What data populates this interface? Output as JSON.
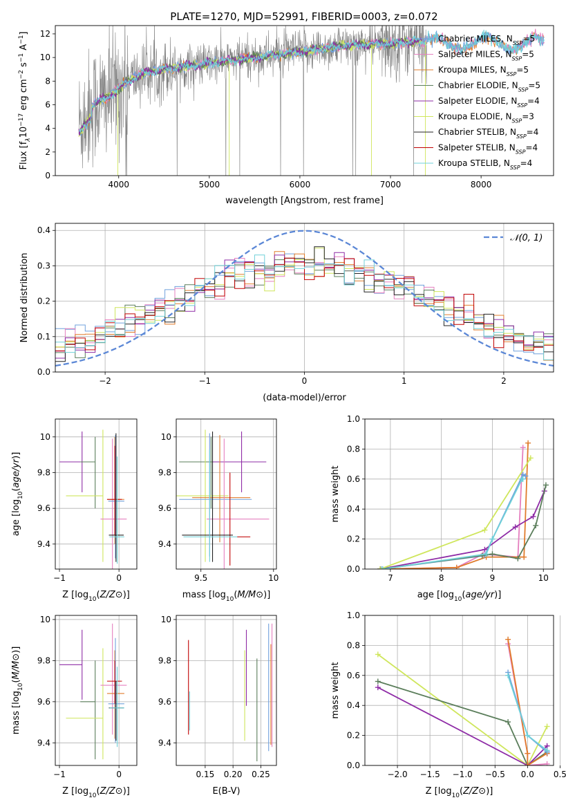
{
  "figure_title": "PLATE=1270, MJD=52991, FIBERID=0003, z=0.072",
  "colors": {
    "Chabrier MILES": "#6fa0dc",
    "Salpeter MILES": "#e57fbf",
    "Kroupa MILES": "#e07b2b",
    "Chabrier ELODIE": "#5a7d5a",
    "Salpeter ELODIE": "#8e2ba6",
    "Kroupa ELODIE": "#cfe65c",
    "Chabrier STELIB": "#222222",
    "Salpeter STELIB": "#c00000",
    "Kroupa STELIB": "#6fd0d8",
    "data": "#808080",
    "normal": "#5b87d6"
  },
  "chart_data": [
    {
      "id": "spectrum",
      "type": "line",
      "title": "PLATE=1270, MJD=52991, FIBERID=0003, z=0.072",
      "xlabel": "wavelength [Angstrom, rest frame]",
      "ylabel_parts": [
        "Flux [f",
        "λ",
        "10",
        "−17",
        " erg cm",
        "−2",
        " s",
        "−1",
        " A",
        "−1",
        "]"
      ],
      "xlim": [
        3300,
        8800
      ],
      "ylim": [
        0,
        12.7
      ],
      "xticks": [
        4000,
        5000,
        6000,
        7000,
        8000
      ],
      "yticks": [
        0,
        2,
        4,
        6,
        8,
        10,
        12
      ],
      "grid": false,
      "legend_position": "top-right",
      "legend": [
        {
          "label": "Chabrier MILES, N",
          "sub": "SSP",
          "tail": "=5",
          "series": "Chabrier MILES"
        },
        {
          "label": "Salpeter MILES, N",
          "sub": "SSP",
          "tail": "=5",
          "series": "Salpeter MILES"
        },
        {
          "label": "Kroupa MILES, N",
          "sub": "SSP",
          "tail": "=5",
          "series": "Kroupa MILES"
        },
        {
          "label": "Chabrier ELODIE, N",
          "sub": "SSP",
          "tail": "=5",
          "series": "Chabrier ELODIE"
        },
        {
          "label": "Salpeter ELODIE, N",
          "sub": "SSP",
          "tail": "=4",
          "series": "Salpeter ELODIE"
        },
        {
          "label": "Kroupa ELODIE, N",
          "sub": "SSP",
          "tail": "=3",
          "series": "Kroupa ELODIE"
        },
        {
          "label": "Chabrier STELIB, N",
          "sub": "SSP",
          "tail": "=4",
          "series": "Chabrier STELIB"
        },
        {
          "label": "Salpeter STELIB, N",
          "sub": "SSP",
          "tail": "=4",
          "series": "Salpeter STELIB"
        },
        {
          "label": "Kroupa STELIB, N",
          "sub": "SSP",
          "tail": "=4",
          "series": "Kroupa STELIB"
        }
      ],
      "data_range": [
        3560,
        7400
      ],
      "continuum": {
        "x": [
          3560,
          3650,
          3750,
          3850,
          3950,
          4050,
          4150,
          4300,
          4500,
          4800,
          5100,
          5500,
          6000,
          6500,
          7000,
          7400
        ],
        "y": [
          4.3,
          5.3,
          6.2,
          6.5,
          7.0,
          7.7,
          8.2,
          8.7,
          9.0,
          9.3,
          9.6,
          10.0,
          10.5,
          11.0,
          11.2,
          11.4
        ]
      },
      "model_x_range": [
        3560,
        8800
      ]
    },
    {
      "id": "residuals",
      "type": "step",
      "xlabel": "(data-model)/error",
      "ylabel": "Normed distribution",
      "xlim": [
        -2.5,
        2.5
      ],
      "ylim": [
        0,
        0.42
      ],
      "xticks": [
        -2,
        -1,
        0,
        1,
        2
      ],
      "yticks": [
        0.0,
        0.1,
        0.2,
        0.3,
        0.4
      ],
      "grid": true,
      "legend_position": "top-right",
      "legend_label": "𝒩(0, 1)",
      "bin_range": [
        -2.5,
        2.5
      ],
      "bins": 50
    },
    {
      "id": "age-vs-Z",
      "type": "errorbar",
      "xlabel": "Z [log10(Z/Z⊙)]",
      "ylabel": "age  [log10(age/yr)]",
      "xlim": [
        -1.07,
        0.3
      ],
      "ylim": [
        9.26,
        10.1
      ],
      "xticks": [
        -1,
        0
      ],
      "yticks": [
        9.4,
        9.6,
        9.8,
        10.0
      ],
      "grid": true,
      "points": [
        {
          "series": "Salpeter ELODIE",
          "x": -0.62,
          "xerr": [
            0.38,
            0.0
          ],
          "y": 9.86,
          "yerr": [
            0.17,
            0.17
          ]
        },
        {
          "series": "Chabrier ELODIE",
          "x": -0.4,
          "xerr": [
            0.25,
            0.0
          ],
          "y": 9.86,
          "yerr": [
            0.26,
            0.14
          ]
        },
        {
          "series": "Kroupa ELODIE",
          "x": -0.27,
          "xerr": [
            0.62,
            0.0
          ],
          "y": 9.67,
          "yerr": [
            0.37,
            0.37
          ]
        },
        {
          "series": "Salpeter MILES",
          "x": -0.11,
          "xerr": [
            0.2,
            0.24
          ],
          "y": 9.54,
          "yerr": [
            0.45,
            0.45
          ]
        },
        {
          "series": "Kroupa MILES",
          "x": -0.07,
          "xerr": [
            0.13,
            0.16
          ],
          "y": 9.65,
          "yerr": [
            0.25,
            0.35
          ]
        },
        {
          "series": "Chabrier MILES",
          "x": -0.06,
          "xerr": [
            0.12,
            0.15
          ],
          "y": 9.64,
          "yerr": [
            0.32,
            0.37
          ]
        },
        {
          "series": "Salpeter STELIB",
          "x": -0.07,
          "xerr": [
            0.13,
            0.12
          ],
          "y": 9.65,
          "yerr": [
            0.2,
            0.3
          ]
        },
        {
          "series": "Chabrier STELIB",
          "x": -0.05,
          "xerr": [
            0.12,
            0.13
          ],
          "y": 9.45,
          "yerr": [
            0.15,
            0.57
          ]
        },
        {
          "series": "Kroupa STELIB",
          "x": -0.03,
          "xerr": [
            0.13,
            0.12
          ],
          "y": 9.44,
          "yerr": [
            0.15,
            0.45
          ]
        }
      ]
    },
    {
      "id": "age-vs-mass",
      "type": "errorbar",
      "xlabel": "mass [log10(M/M⊙)]",
      "ylabel": "",
      "xlim": [
        9.33,
        10.02
      ],
      "ylim": [
        9.26,
        10.1
      ],
      "xticks": [
        9.5,
        10.0
      ],
      "yticks": [
        9.4,
        9.6,
        9.8,
        10.0
      ],
      "grid": true,
      "points": [
        {
          "series": "Chabrier ELODIE",
          "x": 9.57,
          "xerr": [
            0.22,
            0.18
          ],
          "y": 9.86,
          "yerr": [
            0.26,
            0.14
          ]
        },
        {
          "series": "Salpeter ELODIE",
          "x": 9.78,
          "xerr": [
            0.2,
            0.17
          ],
          "y": 9.86,
          "yerr": [
            0.17,
            0.17
          ]
        },
        {
          "series": "Kroupa ELODIE",
          "x": 9.53,
          "xerr": [
            0.2,
            0.16
          ],
          "y": 9.67,
          "yerr": [
            0.37,
            0.37
          ]
        },
        {
          "series": "Kroupa MILES",
          "x": 9.63,
          "xerr": [
            0.19,
            0.21
          ],
          "y": 9.66,
          "yerr": [
            0.25,
            0.35
          ]
        },
        {
          "series": "Chabrier MILES",
          "x": 9.56,
          "xerr": [
            0.21,
            0.29
          ],
          "y": 9.65,
          "yerr": [
            0.32,
            0.37
          ]
        },
        {
          "series": "Salpeter MILES",
          "x": 9.66,
          "xerr": [
            0.12,
            0.31
          ],
          "y": 9.54,
          "yerr": [
            0.45,
            0.45
          ]
        },
        {
          "series": "Salpeter STELIB",
          "x": 9.7,
          "xerr": [
            0.11,
            0.14
          ],
          "y": 9.44,
          "yerr": [
            0.16,
            0.36
          ]
        },
        {
          "series": "Chabrier STELIB",
          "x": 9.58,
          "xerr": [
            0.21,
            0.14
          ],
          "y": 9.45,
          "yerr": [
            0.15,
            0.58
          ]
        },
        {
          "series": "Kroupa STELIB",
          "x": 9.56,
          "xerr": [
            0.18,
            0.19
          ],
          "y": 9.44,
          "yerr": [
            0.14,
            0.49
          ]
        }
      ]
    },
    {
      "id": "mass-weight-vs-age",
      "type": "line",
      "xlabel": "age  [log10(age/yr)]",
      "ylabel": "mass weight",
      "xlim": [
        6.5,
        10.2
      ],
      "ylim": [
        0,
        1.0
      ],
      "xticks": [
        7,
        8,
        9,
        10
      ],
      "yticks": [
        0.0,
        0.2,
        0.4,
        0.6,
        0.8,
        1.0
      ],
      "grid": true,
      "series": [
        {
          "name": "Salpeter MILES",
          "x": [
            6.85,
            8.3,
            8.82,
            9.5,
            9.6
          ],
          "y": [
            0.0,
            0.01,
            0.1,
            0.08,
            0.81
          ]
        },
        {
          "name": "Kroupa MILES",
          "x": [
            6.8,
            8.3,
            8.88,
            9.62,
            9.7
          ],
          "y": [
            0.0,
            0.01,
            0.08,
            0.08,
            0.84
          ]
        },
        {
          "name": "Chabrier MILES",
          "x": [
            6.82,
            8.85,
            9.0,
            9.6,
            9.65
          ],
          "y": [
            0.0,
            0.09,
            0.2,
            0.63,
            0.62
          ]
        },
        {
          "name": "Salpeter ELODIE",
          "x": [
            6.8,
            8.85,
            9.45,
            9.8,
            10.02
          ],
          "y": [
            0.0,
            0.13,
            0.28,
            0.35,
            0.52
          ]
        },
        {
          "name": "Chabrier ELODIE",
          "x": [
            6.8,
            8.8,
            9.0,
            9.5,
            9.85,
            10.05
          ],
          "y": [
            0.0,
            0.09,
            0.1,
            0.07,
            0.29,
            0.56
          ]
        },
        {
          "name": "Kroupa ELODIE",
          "x": [
            6.8,
            8.85,
            9.75
          ],
          "y": [
            0.0,
            0.26,
            0.74
          ]
        },
        {
          "name": "Kroupa STELIB",
          "x": [
            6.85,
            8.88,
            9.0,
            9.58,
            9.6
          ],
          "y": [
            0.0,
            0.1,
            0.2,
            0.6,
            0.6
          ]
        }
      ]
    },
    {
      "id": "mass-vs-Z",
      "type": "errorbar",
      "xlabel": "Z [log10(Z/Z⊙)]",
      "ylabel": "mass [log10(M/M⊙)]",
      "xlim": [
        -1.07,
        0.3
      ],
      "ylim": [
        9.29,
        10.02
      ],
      "xticks": [
        -1,
        0
      ],
      "yticks": [
        9.4,
        9.6,
        9.8,
        10.0
      ],
      "grid": true,
      "points": [
        {
          "series": "Salpeter ELODIE",
          "x": -0.62,
          "xerr": [
            0.38,
            0.0
          ],
          "y": 9.78,
          "yerr": [
            0.17,
            0.17
          ]
        },
        {
          "series": "Chabrier ELODIE",
          "x": -0.4,
          "xerr": [
            0.25,
            0.0
          ],
          "y": 9.6,
          "yerr": [
            0.28,
            0.2
          ]
        },
        {
          "series": "Kroupa ELODIE",
          "x": -0.27,
          "xerr": [
            0.62,
            0.0
          ],
          "y": 9.52,
          "yerr": [
            0.2,
            0.34
          ]
        },
        {
          "series": "Salpeter MILES",
          "x": -0.11,
          "xerr": [
            0.2,
            0.24
          ],
          "y": 9.68,
          "yerr": [
            0.24,
            0.3
          ]
        },
        {
          "series": "Kroupa MILES",
          "x": -0.07,
          "xerr": [
            0.13,
            0.16
          ],
          "y": 9.64,
          "yerr": [
            0.22,
            0.21
          ]
        },
        {
          "series": "Chabrier MILES",
          "x": -0.06,
          "xerr": [
            0.12,
            0.15
          ],
          "y": 9.59,
          "yerr": [
            0.19,
            0.32
          ]
        },
        {
          "series": "Salpeter STELIB",
          "x": -0.07,
          "xerr": [
            0.13,
            0.12
          ],
          "y": 9.7,
          "yerr": [
            0.11,
            0.1
          ]
        },
        {
          "series": "Chabrier STELIB",
          "x": -0.05,
          "xerr": [
            0.12,
            0.13
          ],
          "y": 9.57,
          "yerr": [
            0.16,
            0.13
          ]
        },
        {
          "series": "Kroupa STELIB",
          "x": -0.03,
          "xerr": [
            0.13,
            0.12
          ],
          "y": 9.57,
          "yerr": [
            0.19,
            0.2
          ]
        }
      ]
    },
    {
      "id": "mass-vs-EBV",
      "type": "errorbar",
      "xlabel": "E(B-V)",
      "ylabel": "",
      "xlim": [
        0.098,
        0.278
      ],
      "ylim": [
        9.29,
        10.02
      ],
      "xticks": [
        0.15,
        0.2,
        0.25
      ],
      "xtick_labels": [
        "0.15",
        "0.20",
        "0.25"
      ],
      "yticks": [
        9.4,
        9.6,
        9.8,
        10.0
      ],
      "grid": true,
      "points": [
        {
          "series": "Salpeter STELIB",
          "x": 0.12,
          "xerr": [
            0,
            0
          ],
          "y": 9.7,
          "yerr": [
            0.26,
            0.2
          ]
        },
        {
          "series": "Kroupa STELIB",
          "x": 0.122,
          "xerr": [
            0,
            0
          ],
          "y": 9.57,
          "yerr": [
            0.11,
            0.08
          ]
        },
        {
          "series": "Kroupa ELODIE",
          "x": 0.221,
          "xerr": [
            0,
            0
          ],
          "y": 9.64,
          "yerr": [
            0.23,
            0.21
          ]
        },
        {
          "series": "Salpeter ELODIE",
          "x": 0.224,
          "xerr": [
            0,
            0
          ],
          "y": 9.78,
          "yerr": [
            0.2,
            0.17
          ]
        },
        {
          "series": "Chabrier ELODIE",
          "x": 0.243,
          "xerr": [
            0,
            0
          ],
          "y": 9.55,
          "yerr": [
            0.24,
            0.26
          ]
        },
        {
          "series": "Chabrier MILES",
          "x": 0.264,
          "xerr": [
            0,
            0
          ],
          "y": 9.64,
          "yerr": [
            0.28,
            0.34
          ]
        },
        {
          "series": "Kroupa MILES",
          "x": 0.268,
          "xerr": [
            0,
            0
          ],
          "y": 9.64,
          "yerr": [
            0.25,
            0.24
          ]
        },
        {
          "series": "Salpeter MILES",
          "x": 0.27,
          "xerr": [
            0,
            0
          ],
          "y": 9.68,
          "yerr": [
            0.3,
            0.3
          ]
        }
      ]
    },
    {
      "id": "mass-weight-vs-Z",
      "type": "line",
      "xlabel": "Z [log10(Z/Z⊙)]",
      "ylabel": "mass weight",
      "xlim": [
        -2.5,
        0.4
      ],
      "ylim": [
        0,
        1.0
      ],
      "xticks": [
        -2.0,
        -1.5,
        -1.0,
        -0.5,
        0.0,
        0.5
      ],
      "xtick_labels": [
        "−2.0",
        "−1.5",
        "−1.0",
        "−0.5",
        "0.0",
        "0.5"
      ],
      "yticks": [
        0.0,
        0.2,
        0.4,
        0.6,
        0.8,
        1.0
      ],
      "grid": true,
      "series": [
        {
          "name": "Kroupa ELODIE",
          "x": [
            -2.3,
            0.0,
            0.3
          ],
          "y": [
            0.74,
            0.0,
            0.26
          ]
        },
        {
          "name": "Chabrier ELODIE",
          "x": [
            -2.3,
            -0.3,
            0.0,
            0.3
          ],
          "y": [
            0.56,
            0.29,
            0.0,
            0.09
          ]
        },
        {
          "name": "Salpeter ELODIE",
          "x": [
            -2.3,
            0.0,
            0.3,
            0.3
          ],
          "y": [
            0.52,
            0.0,
            0.13,
            0.08
          ]
        },
        {
          "name": "Salpeter MILES",
          "x": [
            -0.3,
            0.0,
            0.0,
            0.3
          ],
          "y": [
            0.81,
            0.08,
            0.0,
            0.01
          ]
        },
        {
          "name": "Kroupa MILES",
          "x": [
            -0.3,
            0.0,
            0.0,
            0.3
          ],
          "y": [
            0.84,
            0.08,
            0.0,
            0.08
          ]
        },
        {
          "name": "Chabrier MILES",
          "x": [
            -0.3,
            0.0,
            0.3
          ],
          "y": [
            0.62,
            0.2,
            0.09
          ]
        },
        {
          "name": "Kroupa STELIB",
          "x": [
            -0.3,
            0.0,
            0.3
          ],
          "y": [
            0.6,
            0.2,
            0.1
          ]
        }
      ]
    }
  ]
}
